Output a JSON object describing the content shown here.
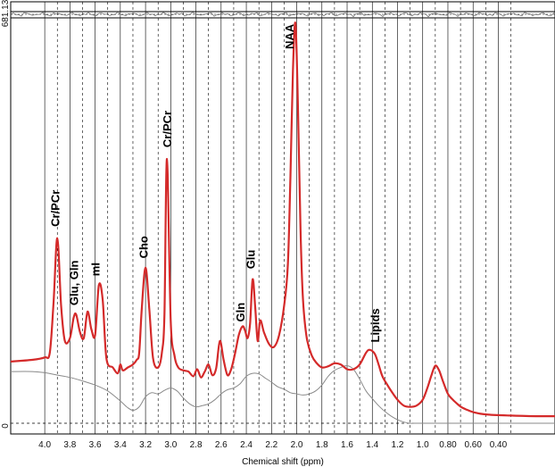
{
  "chart_data": {
    "type": "line",
    "title": "",
    "xlabel": "Chemical shift (ppm)",
    "ylabel": "",
    "x_reversed": true,
    "xlim": [
      4.27,
      -0.05
    ],
    "ylim": [
      0,
      681.13
    ],
    "y_tick_labels": [
      "0",
      "681.13"
    ],
    "x_tick_labels": [
      "4.0",
      "3.8",
      "3.6",
      "3.4",
      "3.2",
      "3.0",
      "2.8",
      "2.6",
      "2.4",
      "2.2",
      "2.0",
      "1.8",
      "1.6",
      "1.4",
      "1.2",
      "1.0",
      "0.80",
      "0.60",
      "0.40"
    ],
    "x_ticks": [
      4.0,
      3.8,
      3.6,
      3.4,
      3.2,
      3.0,
      2.8,
      2.6,
      2.4,
      2.2,
      2.0,
      1.8,
      1.6,
      1.4,
      1.2,
      1.0,
      0.8,
      0.6,
      0.4
    ],
    "grid": true,
    "colors": {
      "spectrum": "#d42a2a",
      "baseline": "#8a8a8a",
      "grid": "#000000",
      "residual": "#666666"
    },
    "series": [
      {
        "role": "spectrum",
        "x": [
          4.27,
          4.1,
          4.0,
          3.96,
          3.93,
          3.9,
          3.87,
          3.84,
          3.8,
          3.77,
          3.75,
          3.72,
          3.69,
          3.66,
          3.63,
          3.6,
          3.57,
          3.54,
          3.51,
          3.46,
          3.42,
          3.4,
          3.38,
          3.34,
          3.3,
          3.27,
          3.25,
          3.23,
          3.2,
          3.17,
          3.14,
          3.1,
          3.07,
          3.05,
          3.03,
          3.0,
          2.97,
          2.94,
          2.9,
          2.86,
          2.82,
          2.79,
          2.76,
          2.73,
          2.7,
          2.67,
          2.64,
          2.61,
          2.58,
          2.55,
          2.52,
          2.49,
          2.46,
          2.43,
          2.41,
          2.39,
          2.37,
          2.35,
          2.33,
          2.31,
          2.29,
          2.26,
          2.22,
          2.18,
          2.14,
          2.1,
          2.07,
          2.05,
          2.03,
          2.01,
          1.99,
          1.97,
          1.95,
          1.92,
          1.88,
          1.84,
          1.8,
          1.75,
          1.7,
          1.65,
          1.6,
          1.55,
          1.5,
          1.45,
          1.42,
          1.38,
          1.35,
          1.32,
          1.28,
          1.25,
          1.2,
          1.15,
          1.1,
          1.05,
          1.0,
          0.96,
          0.93,
          0.9,
          0.87,
          0.84,
          0.8,
          0.76,
          0.72,
          0.69,
          0.66,
          0.6,
          0.5,
          0.3,
          0.1,
          -0.05
        ],
        "y": [
          105,
          108,
          112,
          120,
          205,
          315,
          200,
          140,
          145,
          180,
          185,
          155,
          145,
          190,
          160,
          150,
          235,
          210,
          110,
          95,
          85,
          100,
          90,
          95,
          100,
          108,
          120,
          195,
          265,
          195,
          110,
          95,
          120,
          185,
          450,
          175,
          115,
          95,
          90,
          88,
          80,
          92,
          78,
          88,
          100,
          82,
          93,
          140,
          108,
          82,
          92,
          118,
          150,
          165,
          158,
          145,
          170,
          245,
          200,
          140,
          175,
          155,
          135,
          130,
          150,
          200,
          270,
          420,
          600,
          681,
          540,
          330,
          210,
          145,
          115,
          102,
          95,
          97,
          102,
          100,
          92,
          92,
          100,
          120,
          125,
          118,
          100,
          80,
          65,
          55,
          40,
          30,
          28,
          30,
          40,
          62,
          82,
          98,
          90,
          72,
          50,
          40,
          32,
          27,
          24,
          19,
          15,
          13,
          12,
          12
        ]
      },
      {
        "role": "baseline",
        "x": [
          4.27,
          4.1,
          4.0,
          3.9,
          3.8,
          3.7,
          3.6,
          3.5,
          3.4,
          3.35,
          3.3,
          3.25,
          3.2,
          3.15,
          3.1,
          3.05,
          3.0,
          2.95,
          2.9,
          2.85,
          2.8,
          2.75,
          2.7,
          2.65,
          2.6,
          2.55,
          2.5,
          2.45,
          2.4,
          2.35,
          2.3,
          2.25,
          2.2,
          2.15,
          2.1,
          2.05,
          2.0,
          1.95,
          1.9,
          1.85,
          1.8,
          1.75,
          1.7,
          1.65,
          1.6,
          1.55,
          1.5,
          1.45,
          1.4,
          1.35,
          1.3,
          1.25,
          1.2,
          1.15,
          1.1,
          1.05,
          1.0,
          0.95,
          0.9,
          0.85,
          0.8,
          0.7,
          0.6,
          0.5,
          0.3,
          0.1,
          -0.05
        ],
        "y": [
          88,
          88,
          86,
          82,
          78,
          72,
          65,
          55,
          38,
          28,
          22,
          28,
          45,
          52,
          50,
          56,
          60,
          55,
          43,
          33,
          28,
          30,
          33,
          40,
          50,
          57,
          60,
          67,
          80,
          85,
          84,
          77,
          70,
          62,
          58,
          52,
          50,
          48,
          50,
          55,
          65,
          80,
          90,
          95,
          98,
          92,
          75,
          55,
          42,
          30,
          20,
          12,
          6,
          2,
          0,
          0,
          0,
          0,
          0,
          0,
          0,
          0,
          0,
          0,
          0,
          0,
          0
        ]
      }
    ]
  }
}
